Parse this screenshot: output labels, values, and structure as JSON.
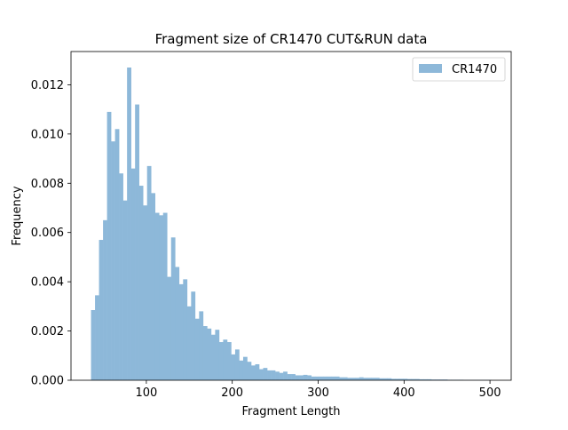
{
  "chart_data": {
    "type": "bar",
    "title": "Fragment size of CR1470 CUT&RUN data",
    "xlabel": "Fragment Length",
    "ylabel": "Frequency",
    "xlim": [
      12.3,
      524.7
    ],
    "ylim": [
      0,
      0.01335
    ],
    "xticks": [
      100,
      200,
      300,
      400,
      500
    ],
    "xtick_labels": [
      "100",
      "200",
      "300",
      "400",
      "500"
    ],
    "yticks": [
      0,
      0.002,
      0.004,
      0.006,
      0.008,
      0.01,
      0.012
    ],
    "ytick_labels": [
      "0.000",
      "0.002",
      "0.004",
      "0.006",
      "0.008",
      "0.010",
      "0.012"
    ],
    "grid": false,
    "legend_position": "top-right",
    "series": [
      {
        "name": "CR1470",
        "color": "#8db8d9",
        "bin_start": 35.6,
        "bin_width": 4.66,
        "values": [
          0.00285,
          0.00345,
          0.0057,
          0.0065,
          0.0109,
          0.0097,
          0.0102,
          0.0084,
          0.0073,
          0.0127,
          0.0086,
          0.0112,
          0.0079,
          0.0071,
          0.0087,
          0.0076,
          0.0068,
          0.0067,
          0.0068,
          0.0042,
          0.0058,
          0.0046,
          0.0039,
          0.0041,
          0.003,
          0.0036,
          0.0025,
          0.0028,
          0.0022,
          0.0021,
          0.00185,
          0.00205,
          0.00155,
          0.00165,
          0.00155,
          0.00105,
          0.00125,
          0.0008,
          0.00095,
          0.00075,
          0.0006,
          0.00065,
          0.00045,
          0.0005,
          0.0004,
          0.0004,
          0.00035,
          0.0003,
          0.00035,
          0.00025,
          0.00025,
          0.0002,
          0.0002,
          0.00022,
          0.0002,
          0.00015,
          0.00015,
          0.00015,
          0.00015,
          0.00015,
          0.00015,
          0.00015,
          0.00012,
          0.00012,
          0.0001,
          0.0001,
          0.0001,
          0.00012,
          0.0001,
          0.0001,
          0.0001,
          0.0001,
          8e-05,
          8e-05,
          8e-05,
          6e-05,
          6e-05,
          6e-05,
          6e-05,
          5e-05,
          5e-05,
          5e-05,
          4e-05,
          4e-05,
          4e-05,
          3e-05,
          3e-05,
          3e-05,
          3e-05,
          2e-05,
          2e-05,
          2e-05,
          2e-05,
          1e-05,
          1e-05,
          1e-05,
          1e-05,
          1e-05,
          1e-05,
          1e-05
        ]
      }
    ]
  }
}
